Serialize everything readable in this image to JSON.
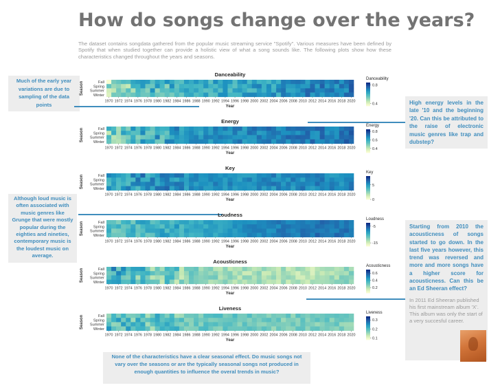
{
  "page": {
    "title": "How do songs change over the years?",
    "intro": "The dataset contains songdata gathered from the popular music streaming service \"Spotify\". Various measures have been defined by Spotify that when studied together can provide a holistic view of what a song sounds like. The following plots show how these characteristics changed throughout the years and seasons."
  },
  "callouts": {
    "early_years": "Much of the early year variations are due to sampling of the data points",
    "energy": "High energy levels in the late '10 and the beginning '20. Can this be attributed to the raise of electronic music genres like trap and dubstep?",
    "loudness": "Although loud music is often associated with music genres like Grunge that were mostly popular during the eighties and nineties, contemporary music is the loudest music on average.",
    "acousticness": "Starting from 2010 the acousticness of songs started to go down. In the last five years however, this trend was reversed and more and more songs have a higher score for acousticness. Can this be an Ed Sheeran effect?",
    "ed_sheeran_note": "In 2011 Ed Sheeran published his first mainstream album 'X'. This album was only the start of a very succesful career.",
    "seasonal": "None of the characteristics have a clear seasonal effect. Do music songs not vary over the seasons or are the typically seasonal songs not produced in enough quantities to influence the overal trends in music?"
  },
  "colors": {
    "accent": "#3f8dbd",
    "callout_bg": "#ededed",
    "title": "#737373",
    "scale": [
      "#f7fcd0",
      "#c7e9b4",
      "#7fcdbb",
      "#41b6c4",
      "#1d91c0",
      "#225ea8",
      "#0c2c84"
    ]
  },
  "chart_data": [
    {
      "type": "heatmap",
      "title": "Danceability",
      "xlabel": "Year",
      "ylabel": "Season",
      "years": [
        1970,
        2020
      ],
      "seasons": [
        "Fall",
        "Spring",
        "Summer",
        "Winter"
      ],
      "x_ticks": [
        "1970",
        "1972",
        "1974",
        "1976",
        "1978",
        "1980",
        "1982",
        "1984",
        "1986",
        "1988",
        "1990",
        "1992",
        "1994",
        "1996",
        "1998",
        "2000",
        "2002",
        "2004",
        "2006",
        "2008",
        "2010",
        "2012",
        "2014",
        "2016",
        "2018",
        "2020"
      ],
      "legend": {
        "title": "Danceability",
        "ticks": [
          "0.8",
          "0.4"
        ]
      },
      "value_range": [
        0.35,
        0.85
      ],
      "trend": [
        0.46,
        0.58,
        0.6,
        0.62,
        0.64,
        0.66,
        0.7,
        0.72
      ],
      "noise": 0.07,
      "early_noise": 0.11
    },
    {
      "type": "heatmap",
      "title": "Energy",
      "xlabel": "Year",
      "ylabel": "Season",
      "years": [
        1970,
        2020
      ],
      "seasons": [
        "Fall",
        "Spring",
        "Summer",
        "Winter"
      ],
      "x_ticks": [
        "1970",
        "1972",
        "1974",
        "1976",
        "1978",
        "1980",
        "1982",
        "1984",
        "1986",
        "1988",
        "1990",
        "1992",
        "1994",
        "1996",
        "1998",
        "2000",
        "2002",
        "2004",
        "2006",
        "2008",
        "2010",
        "2012",
        "2014",
        "2016",
        "2018",
        "2020"
      ],
      "legend": {
        "title": "Energy",
        "ticks": [
          "0.8",
          "0.6",
          "0.4"
        ]
      },
      "value_range": [
        0.3,
        0.85
      ],
      "trend": [
        0.5,
        0.58,
        0.62,
        0.66,
        0.68,
        0.7,
        0.7,
        0.72
      ],
      "noise": 0.06,
      "early_noise": 0.11
    },
    {
      "type": "heatmap",
      "title": "Key",
      "xlabel": "Year",
      "ylabel": "Season",
      "years": [
        1970,
        2020
      ],
      "seasons": [
        "Fall",
        "Spring",
        "Summer",
        "Winter"
      ],
      "x_ticks": [
        "1970",
        "1972",
        "1974",
        "1976",
        "1978",
        "1980",
        "1982",
        "1984",
        "1986",
        "1988",
        "1990",
        "1992",
        "1994",
        "1996",
        "1998",
        "2000",
        "2002",
        "2004",
        "2006",
        "2008",
        "2010",
        "2012",
        "2014",
        "2016",
        "2018",
        "2020"
      ],
      "legend": {
        "title": "Key",
        "ticks": [
          "5",
          "0"
        ]
      },
      "value_range": [
        0,
        8
      ],
      "trend": [
        4.8,
        5.1,
        5.2,
        5.3,
        5.4,
        5.4,
        5.5,
        5.5
      ],
      "noise": 0.8,
      "early_noise": 1.4
    },
    {
      "type": "heatmap",
      "title": "Loudness",
      "xlabel": "Year",
      "ylabel": "Season",
      "years": [
        1970,
        2020
      ],
      "seasons": [
        "Fall",
        "Spring",
        "Summer",
        "Winter"
      ],
      "x_ticks": [
        "1970",
        "1972",
        "1974",
        "1976",
        "1978",
        "1980",
        "1982",
        "1984",
        "1986",
        "1988",
        "1990",
        "1992",
        "1994",
        "1996",
        "1998",
        "2000",
        "2002",
        "2004",
        "2006",
        "2008",
        "2010",
        "2012",
        "2014",
        "2016",
        "2018",
        "2020"
      ],
      "legend": {
        "title": "Loudness",
        "ticks": [
          "-5",
          "-15"
        ]
      },
      "value_range": [
        -17,
        -3
      ],
      "trend": [
        -11,
        -10,
        -9.5,
        -8.8,
        -7.6,
        -6.8,
        -6.2,
        -6.5
      ],
      "noise": 0.9,
      "early_noise": 1.8
    },
    {
      "type": "heatmap",
      "title": "Acousticness",
      "xlabel": "Year",
      "ylabel": "Season",
      "years": [
        1970,
        2020
      ],
      "seasons": [
        "Fall",
        "Spring",
        "Summer",
        "Winter"
      ],
      "x_ticks": [
        "1970",
        "1972",
        "1974",
        "1976",
        "1978",
        "1980",
        "1982",
        "1984",
        "1986",
        "1988",
        "1990",
        "1992",
        "1994",
        "1996",
        "1998",
        "2000",
        "2002",
        "2004",
        "2006",
        "2008",
        "2010",
        "2012",
        "2014",
        "2016",
        "2018",
        "2020"
      ],
      "legend": {
        "title": "Acousticness",
        "ticks": [
          "0.6",
          "0.4",
          "0.2"
        ]
      },
      "value_range": [
        0.05,
        0.7
      ],
      "trend": [
        0.42,
        0.32,
        0.28,
        0.24,
        0.2,
        0.2,
        0.16,
        0.26
      ],
      "noise": 0.06,
      "early_noise": 0.14
    },
    {
      "type": "heatmap",
      "title": "Liveness",
      "xlabel": "Year",
      "ylabel": "Season",
      "years": [
        1970,
        2020
      ],
      "seasons": [
        "Fall",
        "Spring",
        "Summer",
        "Winter"
      ],
      "x_ticks": [
        "1970",
        "1972",
        "1974",
        "1976",
        "1978",
        "1980",
        "1982",
        "1984",
        "1986",
        "1988",
        "1990",
        "1992",
        "1994",
        "1996",
        "1998",
        "2000",
        "2002",
        "2004",
        "2006",
        "2008",
        "2010",
        "2012",
        "2014",
        "2016",
        "2018",
        "2020"
      ],
      "legend": {
        "title": "Liveness",
        "ticks": [
          "0.3",
          "0.2",
          "0.1"
        ]
      },
      "value_range": [
        0.08,
        0.34
      ],
      "trend": [
        0.2,
        0.19,
        0.18,
        0.18,
        0.18,
        0.17,
        0.17,
        0.17
      ],
      "noise": 0.025,
      "early_noise": 0.05
    }
  ]
}
